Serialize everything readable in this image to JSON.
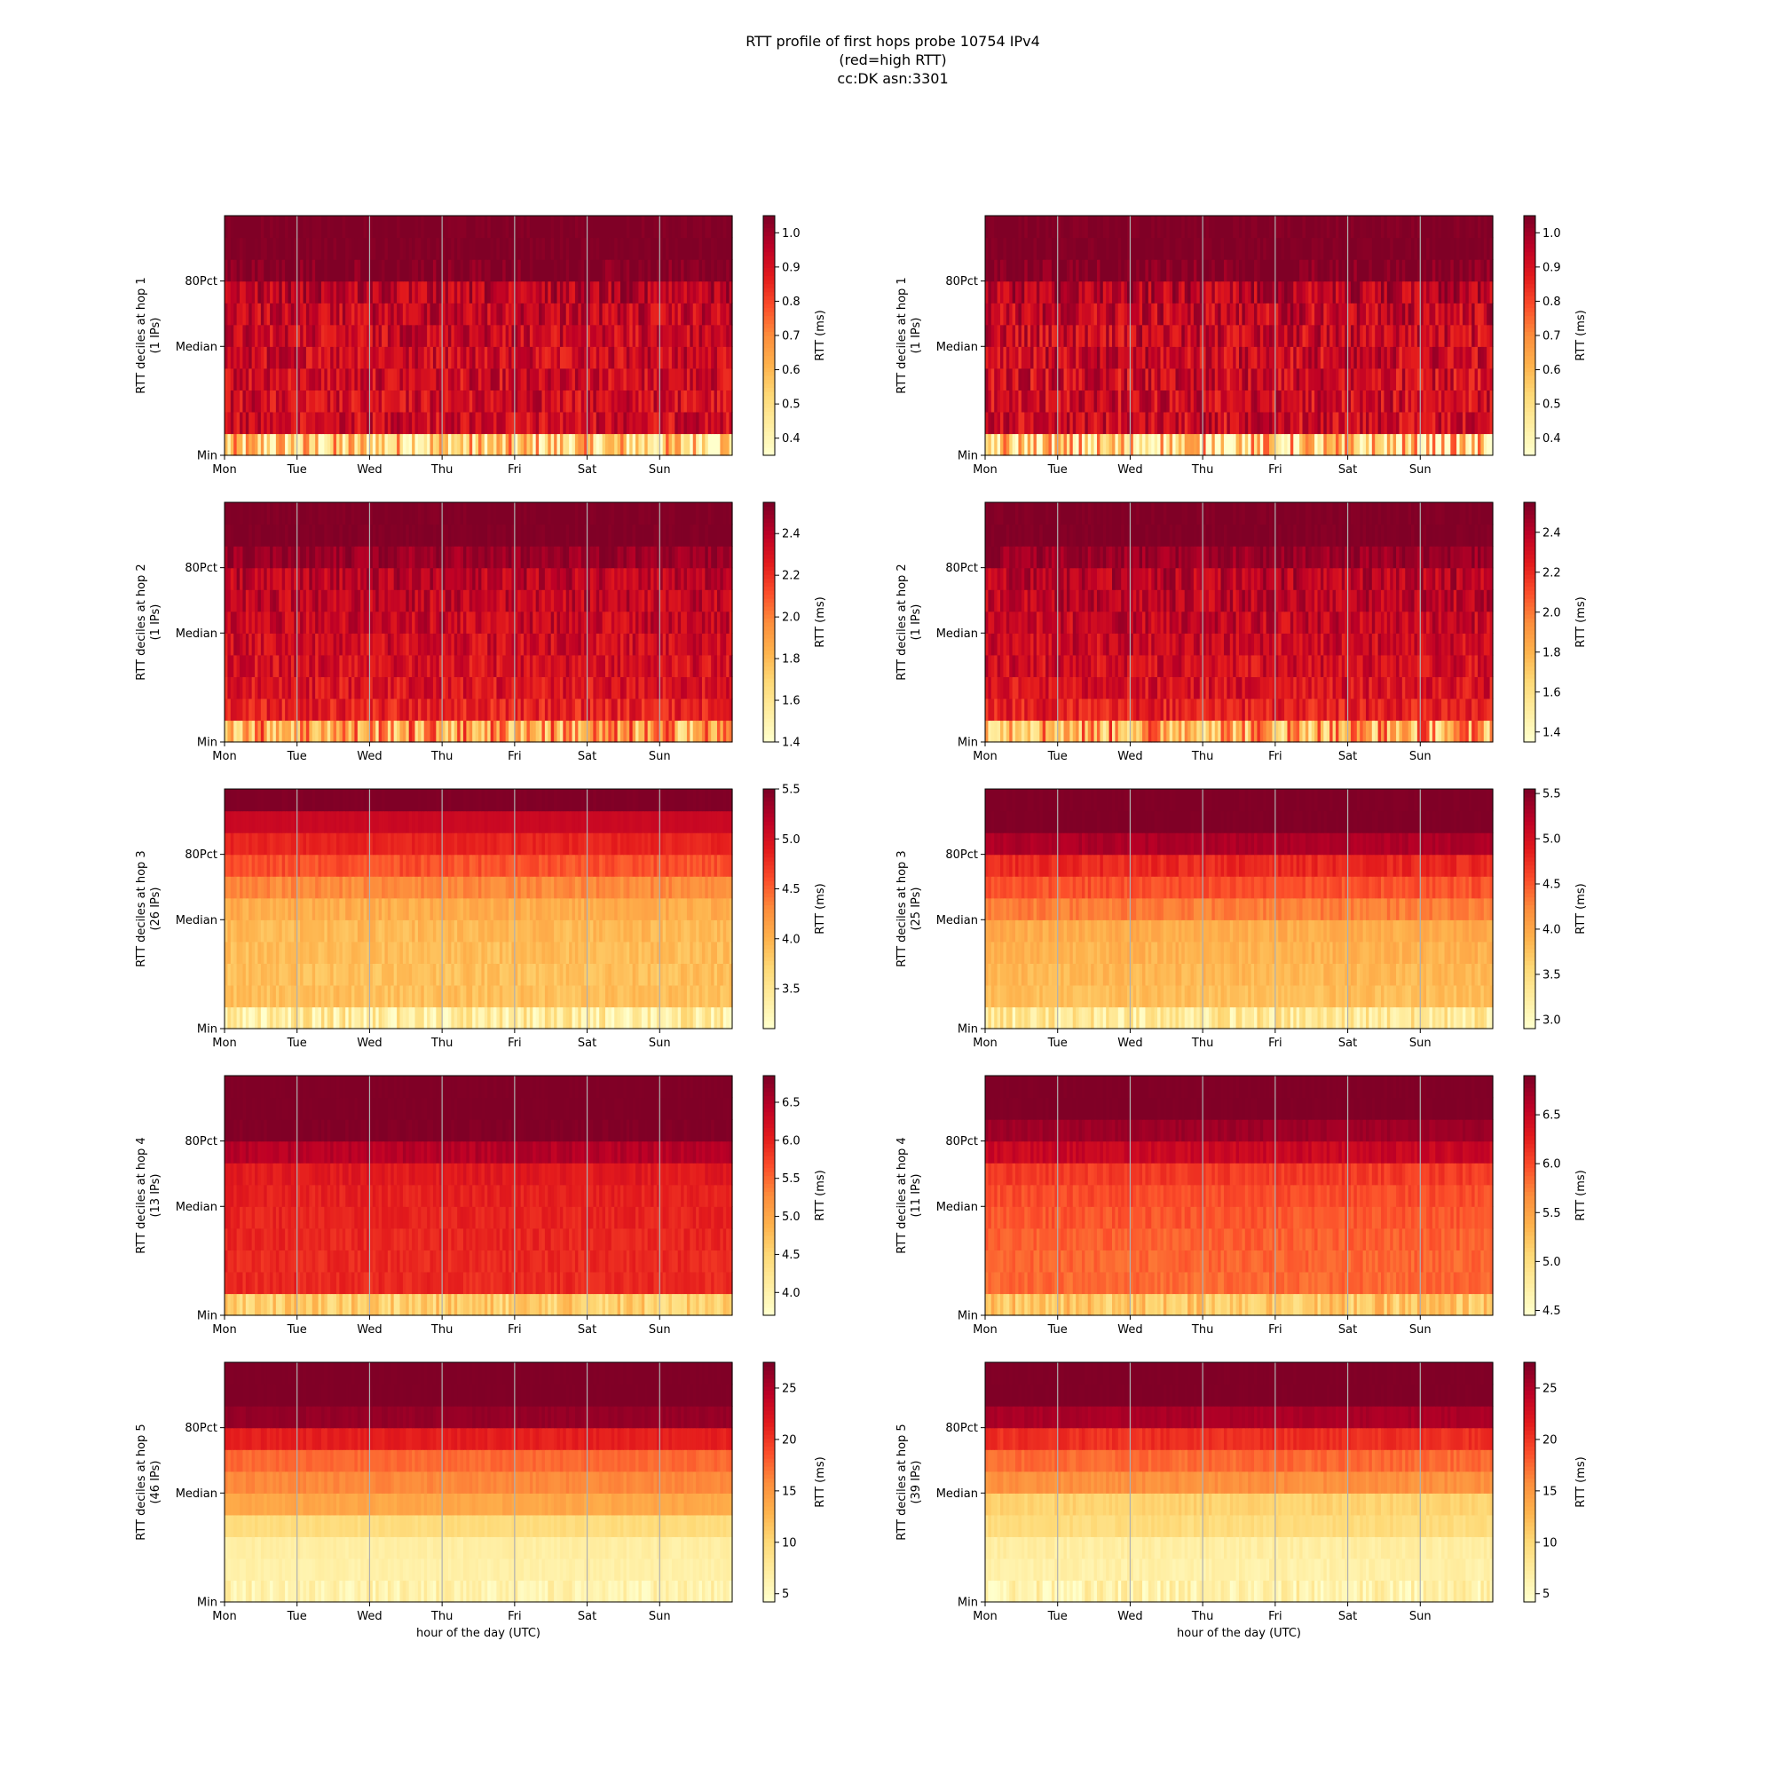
{
  "figure": {
    "title_lines": [
      "RTT profile of first hops probe 10754 IPv4",
      "(red=high RTT)",
      "cc:DK asn:3301"
    ],
    "x_tick_labels": [
      "Mon",
      "Tue",
      "Wed",
      "Thu",
      "Fri",
      "Sat",
      "Sun"
    ],
    "y_tick_labels": [
      "80Pct",
      "Median",
      "Min"
    ],
    "x_axis_label": "hour of the day (UTC)",
    "colorbar_label": "RTT (ms)",
    "colors": {
      "lightest": "#ffffcc",
      "light": "#ffeda0",
      "yellow": "#fed976",
      "orange_light": "#feb24c",
      "orange": "#fd8d3c",
      "red_orange": "#fc4e2a",
      "red": "#e31a1c",
      "dark_red": "#bd0026",
      "darkest": "#800026",
      "grid": "#b0b0b0"
    }
  },
  "chart_data": [
    {
      "type": "heatmap",
      "ylabel": "RTT deciles at hop 1",
      "ips": "(1 IPs)",
      "colorbar_ticks": [
        "0.4",
        "0.5",
        "0.6",
        "0.7",
        "0.8",
        "0.9",
        "1.0"
      ],
      "cb_range": [
        0.35,
        1.05
      ],
      "row_values": [
        0.52,
        0.92,
        0.92,
        0.92,
        0.93,
        0.93,
        0.94,
        0.96,
        1.05,
        1.05,
        1.05
      ],
      "jitter": 0.09
    },
    {
      "type": "heatmap",
      "ylabel": "RTT deciles at hop 1",
      "ips": "(1 IPs)",
      "colorbar_ticks": [
        "0.4",
        "0.5",
        "0.6",
        "0.7",
        "0.8",
        "0.9",
        "1.0"
      ],
      "cb_range": [
        0.35,
        1.05
      ],
      "row_values": [
        0.5,
        0.92,
        0.92,
        0.92,
        0.93,
        0.93,
        0.94,
        0.96,
        1.05,
        1.05,
        1.05
      ],
      "jitter": 0.1
    },
    {
      "type": "heatmap",
      "ylabel": "RTT deciles at hop 2",
      "ips": "(1 IPs)",
      "colorbar_ticks": [
        "1.4",
        "1.6",
        "1.8",
        "2.0",
        "2.2",
        "2.4"
      ],
      "cb_range": [
        1.4,
        2.55
      ],
      "row_values": [
        1.9,
        2.25,
        2.3,
        2.32,
        2.34,
        2.36,
        2.38,
        2.4,
        2.48,
        2.55,
        2.55
      ],
      "jitter": 0.12
    },
    {
      "type": "heatmap",
      "ylabel": "RTT deciles at hop 2",
      "ips": "(1 IPs)",
      "colorbar_ticks": [
        "1.4",
        "1.6",
        "1.8",
        "2.0",
        "2.2",
        "2.4"
      ],
      "cb_range": [
        1.35,
        2.55
      ],
      "row_values": [
        1.85,
        2.25,
        2.3,
        2.32,
        2.34,
        2.36,
        2.38,
        2.4,
        2.48,
        2.55,
        2.55
      ],
      "jitter": 0.13
    },
    {
      "type": "heatmap",
      "ylabel": "RTT deciles at hop 3",
      "ips": "(26 IPs)",
      "colorbar_ticks": [
        "3.5",
        "4.0",
        "4.5",
        "5.0",
        "5.5"
      ],
      "cb_range": [
        3.1,
        5.5
      ],
      "row_values": [
        3.4,
        3.9,
        3.9,
        3.92,
        3.95,
        4.05,
        4.3,
        4.6,
        4.85,
        5.1,
        5.5
      ],
      "jitter": 0.12
    },
    {
      "type": "heatmap",
      "ylabel": "RTT deciles at hop 3",
      "ips": "(25 IPs)",
      "colorbar_ticks": [
        "3.0",
        "3.5",
        "4.0",
        "4.5",
        "5.0",
        "5.5"
      ],
      "cb_range": [
        2.9,
        5.55
      ],
      "row_values": [
        3.3,
        3.8,
        3.85,
        3.9,
        3.95,
        4.3,
        4.55,
        4.8,
        5.3,
        5.55,
        5.55
      ],
      "jitter": 0.12
    },
    {
      "type": "heatmap",
      "ylabel": "RTT deciles at hop 4",
      "ips": "(13 IPs)",
      "colorbar_ticks": [
        "4.0",
        "4.5",
        "5.0",
        "5.5",
        "6.0",
        "6.5"
      ],
      "cb_range": [
        3.7,
        6.85
      ],
      "row_values": [
        4.6,
        5.95,
        5.95,
        5.98,
        6.0,
        6.02,
        6.1,
        6.5,
        6.85,
        6.85,
        6.85
      ],
      "jitter": 0.12
    },
    {
      "type": "heatmap",
      "ylabel": "RTT deciles at hop 4",
      "ips": "(11 IPs)",
      "colorbar_ticks": [
        "4.5",
        "5.0",
        "5.5",
        "6.0",
        "6.5"
      ],
      "cb_range": [
        4.45,
        6.9
      ],
      "row_values": [
        5.2,
        5.85,
        5.87,
        5.9,
        5.95,
        6.0,
        6.1,
        6.5,
        6.75,
        6.9,
        6.9
      ],
      "jitter": 0.1
    },
    {
      "type": "heatmap",
      "ylabel": "RTT deciles at hop 5",
      "ips": "(46 IPs)",
      "colorbar_ticks": [
        "5",
        "10",
        "15",
        "20",
        "25"
      ],
      "cb_range": [
        4.2,
        27.5
      ],
      "row_values": [
        6.2,
        6.6,
        6.9,
        9.5,
        13.8,
        16.0,
        17.5,
        21.5,
        26.5,
        27.5,
        27.5
      ],
      "jitter": 0.6
    },
    {
      "type": "heatmap",
      "ylabel": "RTT deciles at hop 5",
      "ips": "(39 IPs)",
      "colorbar_ticks": [
        "5",
        "10",
        "15",
        "20",
        "25"
      ],
      "cb_range": [
        4.2,
        27.5
      ],
      "row_values": [
        6.2,
        6.6,
        7.0,
        9.5,
        10.5,
        15.5,
        17.5,
        20.5,
        25.5,
        27.5,
        27.5
      ],
      "jitter": 0.8
    }
  ]
}
